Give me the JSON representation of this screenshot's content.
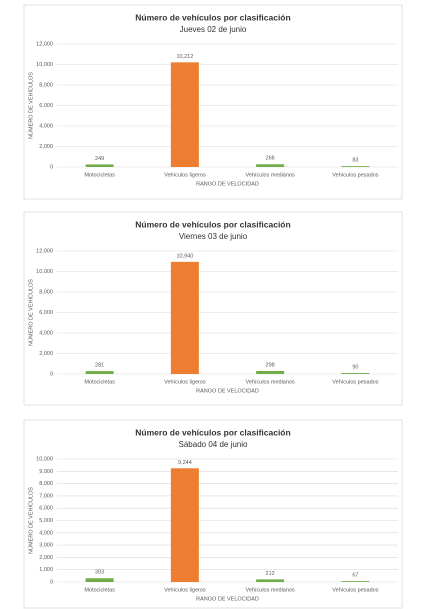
{
  "chart_data": [
    {
      "type": "bar",
      "title": "Número de vehículos por clasificación",
      "subtitle": "Jueves 02 de junio",
      "x_label": "RANGO DE VELOCIDAD",
      "y_label": "NÚMERO DE VEHÍCULOS",
      "categories": [
        "Motocicletas",
        "Vehículos ligeros",
        "Vehículos medianos",
        "Vehículos pesados"
      ],
      "values": [
        249,
        10212,
        266,
        83
      ],
      "value_labels": [
        "249",
        "10,212",
        "266",
        "83"
      ],
      "colors": [
        "#70ad47",
        "#ed7d31",
        "#70ad47",
        "#70ad47"
      ],
      "ylim": [
        0,
        12000
      ],
      "yticks": [
        0,
        {
          "value": 2000,
          "label": "2,000"
        },
        {
          "value": 4000,
          "label": "4,000"
        },
        {
          "value": 6000,
          "label": "6,000"
        },
        {
          "value": 8000,
          "label": "8,000"
        },
        {
          "value": 10000,
          "label": "10,000"
        },
        {
          "value": 12000,
          "label": "12,000"
        }
      ],
      "grid": true
    },
    {
      "type": "bar",
      "title": "Número de vehículos por clasificación",
      "subtitle": "Viernes 03 de junio",
      "x_label": "RANGO DE VELOCIDAD",
      "y_label": "NÚMERO DE VEHÍCULOS",
      "categories": [
        "Motocicletas",
        "Vehículos ligeros",
        "Vehículos medianos",
        "Vehículos pesados"
      ],
      "values": [
        281,
        10940,
        298,
        90
      ],
      "value_labels": [
        "281",
        "10,940",
        "298",
        "90"
      ],
      "colors": [
        "#70ad47",
        "#ed7d31",
        "#70ad47",
        "#70ad47"
      ],
      "ylim": [
        0,
        12000
      ],
      "yticks": [
        0,
        {
          "value": 2000,
          "label": "2,000"
        },
        {
          "value": 4000,
          "label": "4,000"
        },
        {
          "value": 6000,
          "label": "6,000"
        },
        {
          "value": 8000,
          "label": "8,000"
        },
        {
          "value": 10000,
          "label": "10,000"
        },
        {
          "value": 12000,
          "label": "12,000"
        }
      ],
      "grid": true
    },
    {
      "type": "bar",
      "title": "Número de vehículos por clasificación",
      "subtitle": "Sábado 04 de junio",
      "x_label": "RANGO DE VELOCIDAD",
      "y_label": "NÚMERO DE VEHÍCULOS",
      "categories": [
        "Motocicletas",
        "Vehículos ligeros",
        "Vehículos medianos",
        "Vehículos pesados"
      ],
      "values": [
        303,
        9244,
        212,
        67
      ],
      "value_labels": [
        "303",
        "9,244",
        "212",
        "67"
      ],
      "colors": [
        "#70ad47",
        "#ed7d31",
        "#70ad47",
        "#70ad47"
      ],
      "ylim": [
        0,
        10000
      ],
      "yticks": [
        0,
        {
          "value": 1000,
          "label": "1,000"
        },
        {
          "value": 2000,
          "label": "2,000"
        },
        {
          "value": 3000,
          "label": "3,000"
        },
        {
          "value": 4000,
          "label": "4,000"
        },
        {
          "value": 5000,
          "label": "5,000"
        },
        {
          "value": 6000,
          "label": "6,000"
        },
        {
          "value": 7000,
          "label": "7,000"
        },
        {
          "value": 8000,
          "label": "8,000"
        },
        {
          "value": 9000,
          "label": "9,000"
        },
        {
          "value": 10000,
          "label": "10,000"
        }
      ],
      "grid": true
    }
  ]
}
